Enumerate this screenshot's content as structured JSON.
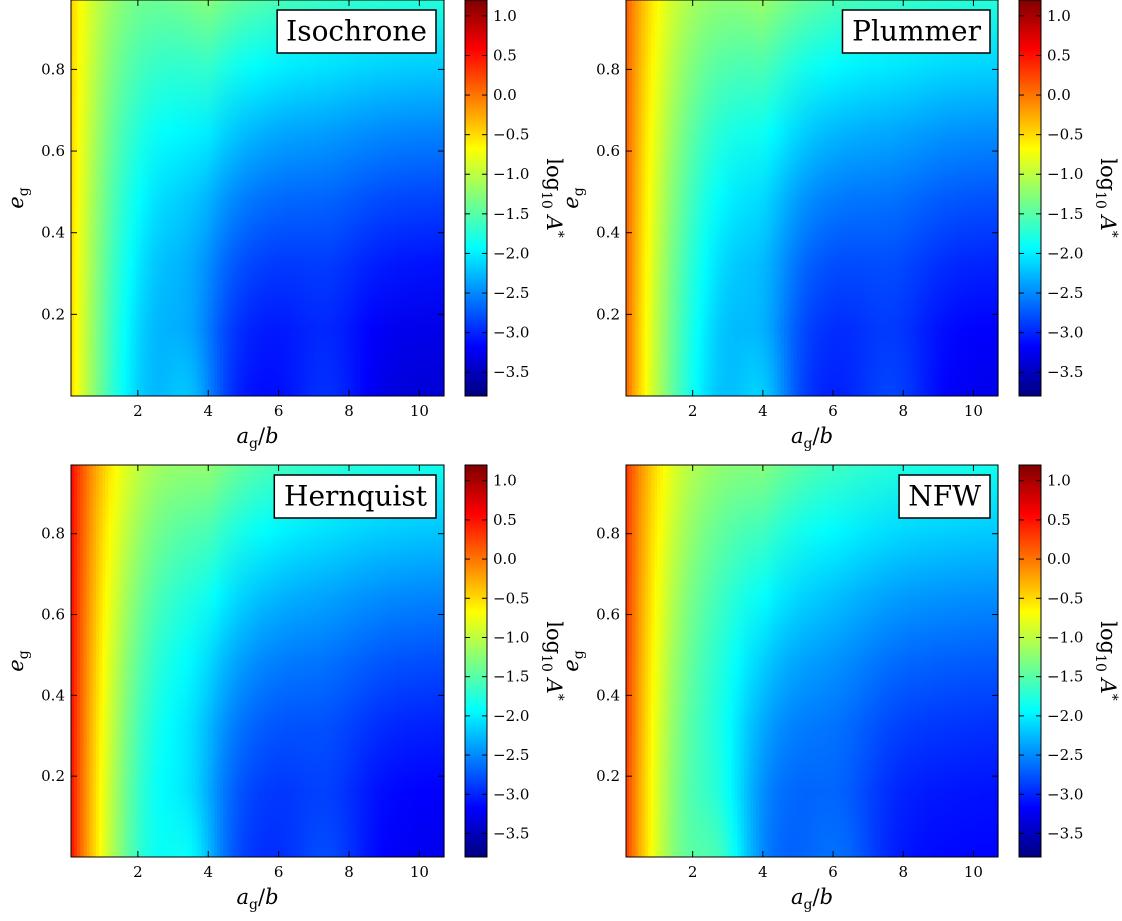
{
  "chart_data": [
    {
      "type": "heatmap",
      "title": "Isochrone",
      "xlabel": "a_g/b",
      "ylabel": "e_g",
      "xlim": [
        0.1,
        10.7
      ],
      "ylim": [
        0.0,
        0.97
      ],
      "xticks": [
        "2",
        "4",
        "6",
        "8",
        "10"
      ],
      "yticks": [
        "0.2",
        "0.4",
        "0.6",
        "0.8"
      ],
      "colorbar": {
        "label": "log10 A*",
        "range": [
          -3.8,
          1.2
        ],
        "ticks": [
          "1.0",
          "0.5",
          "0.0",
          "−0.5",
          "−1.0",
          "−1.5",
          "−2.0",
          "−2.5",
          "−3.0",
          "−3.5"
        ]
      },
      "field": {
        "left_edge_value": -0.35,
        "minima_columns": [
          3.5,
          7.4
        ],
        "top_right_value": -1.7,
        "bottom_right_value": -3.4
      }
    },
    {
      "type": "heatmap",
      "title": "Plummer",
      "xlabel": "a_g/b",
      "ylabel": "e_g",
      "xlim": [
        0.1,
        10.7
      ],
      "ylim": [
        0.0,
        0.97
      ],
      "xticks": [
        "2",
        "4",
        "6",
        "8",
        "10"
      ],
      "yticks": [
        "0.2",
        "0.4",
        "0.6",
        "0.8"
      ],
      "colorbar": {
        "label": "log10 A*",
        "range": [
          -3.8,
          1.2
        ],
        "ticks": [
          "1.0",
          "0.5",
          "0.0",
          "−0.5",
          "−1.0",
          "−1.5",
          "−2.0",
          "−2.5",
          "−3.0",
          "−3.5"
        ]
      },
      "field": {
        "left_edge_value": 0.25,
        "minima_columns": [
          4.0,
          7.7
        ],
        "top_right_value": -1.7,
        "bottom_right_value": -3.3
      }
    },
    {
      "type": "heatmap",
      "title": "Hernquist",
      "xlabel": "a_g/b",
      "ylabel": "e_g",
      "xlim": [
        0.1,
        10.7
      ],
      "ylim": [
        0.0,
        0.97
      ],
      "xticks": [
        "2",
        "4",
        "6",
        "8",
        "10"
      ],
      "yticks": [
        "0.2",
        "0.4",
        "0.6",
        "0.8"
      ],
      "colorbar": {
        "label": "log10 A*",
        "range": [
          -3.8,
          1.2
        ],
        "ticks": [
          "1.0",
          "0.5",
          "0.0",
          "−0.5",
          "−1.0",
          "−1.5",
          "−2.0",
          "−2.5",
          "−3.0",
          "−3.5"
        ]
      },
      "field": {
        "left_edge_value": 0.7,
        "minima_columns": [
          3.5,
          7.4
        ],
        "top_right_value": -1.8,
        "bottom_right_value": -3.3
      }
    },
    {
      "type": "heatmap",
      "title": "NFW",
      "xlabel": "a_g/b",
      "ylabel": "e_g",
      "xlim": [
        0.1,
        10.7
      ],
      "ylim": [
        0.0,
        0.97
      ],
      "xticks": [
        "2",
        "4",
        "6",
        "8",
        "10"
      ],
      "yticks": [
        "0.2",
        "0.4",
        "0.6",
        "0.8"
      ],
      "colorbar": {
        "label": "log10 A*",
        "range": [
          -3.8,
          1.2
        ],
        "ticks": [
          "1.0",
          "0.5",
          "0.0",
          "−0.5",
          "−1.0",
          "−1.5",
          "−2.0",
          "−2.5",
          "−3.0",
          "−3.5"
        ]
      },
      "field": {
        "left_edge_value": 0.45,
        "minima_columns": [
          2.8,
          6.2
        ],
        "top_right_value": -1.8,
        "bottom_right_value": -3.2
      }
    }
  ],
  "colormap": {
    "name": "jet",
    "stops": [
      "#00007f",
      "#0000ff",
      "#007fff",
      "#00ffff",
      "#7fff7f",
      "#ffff00",
      "#ff7f00",
      "#ff0000",
      "#7f0000"
    ]
  }
}
